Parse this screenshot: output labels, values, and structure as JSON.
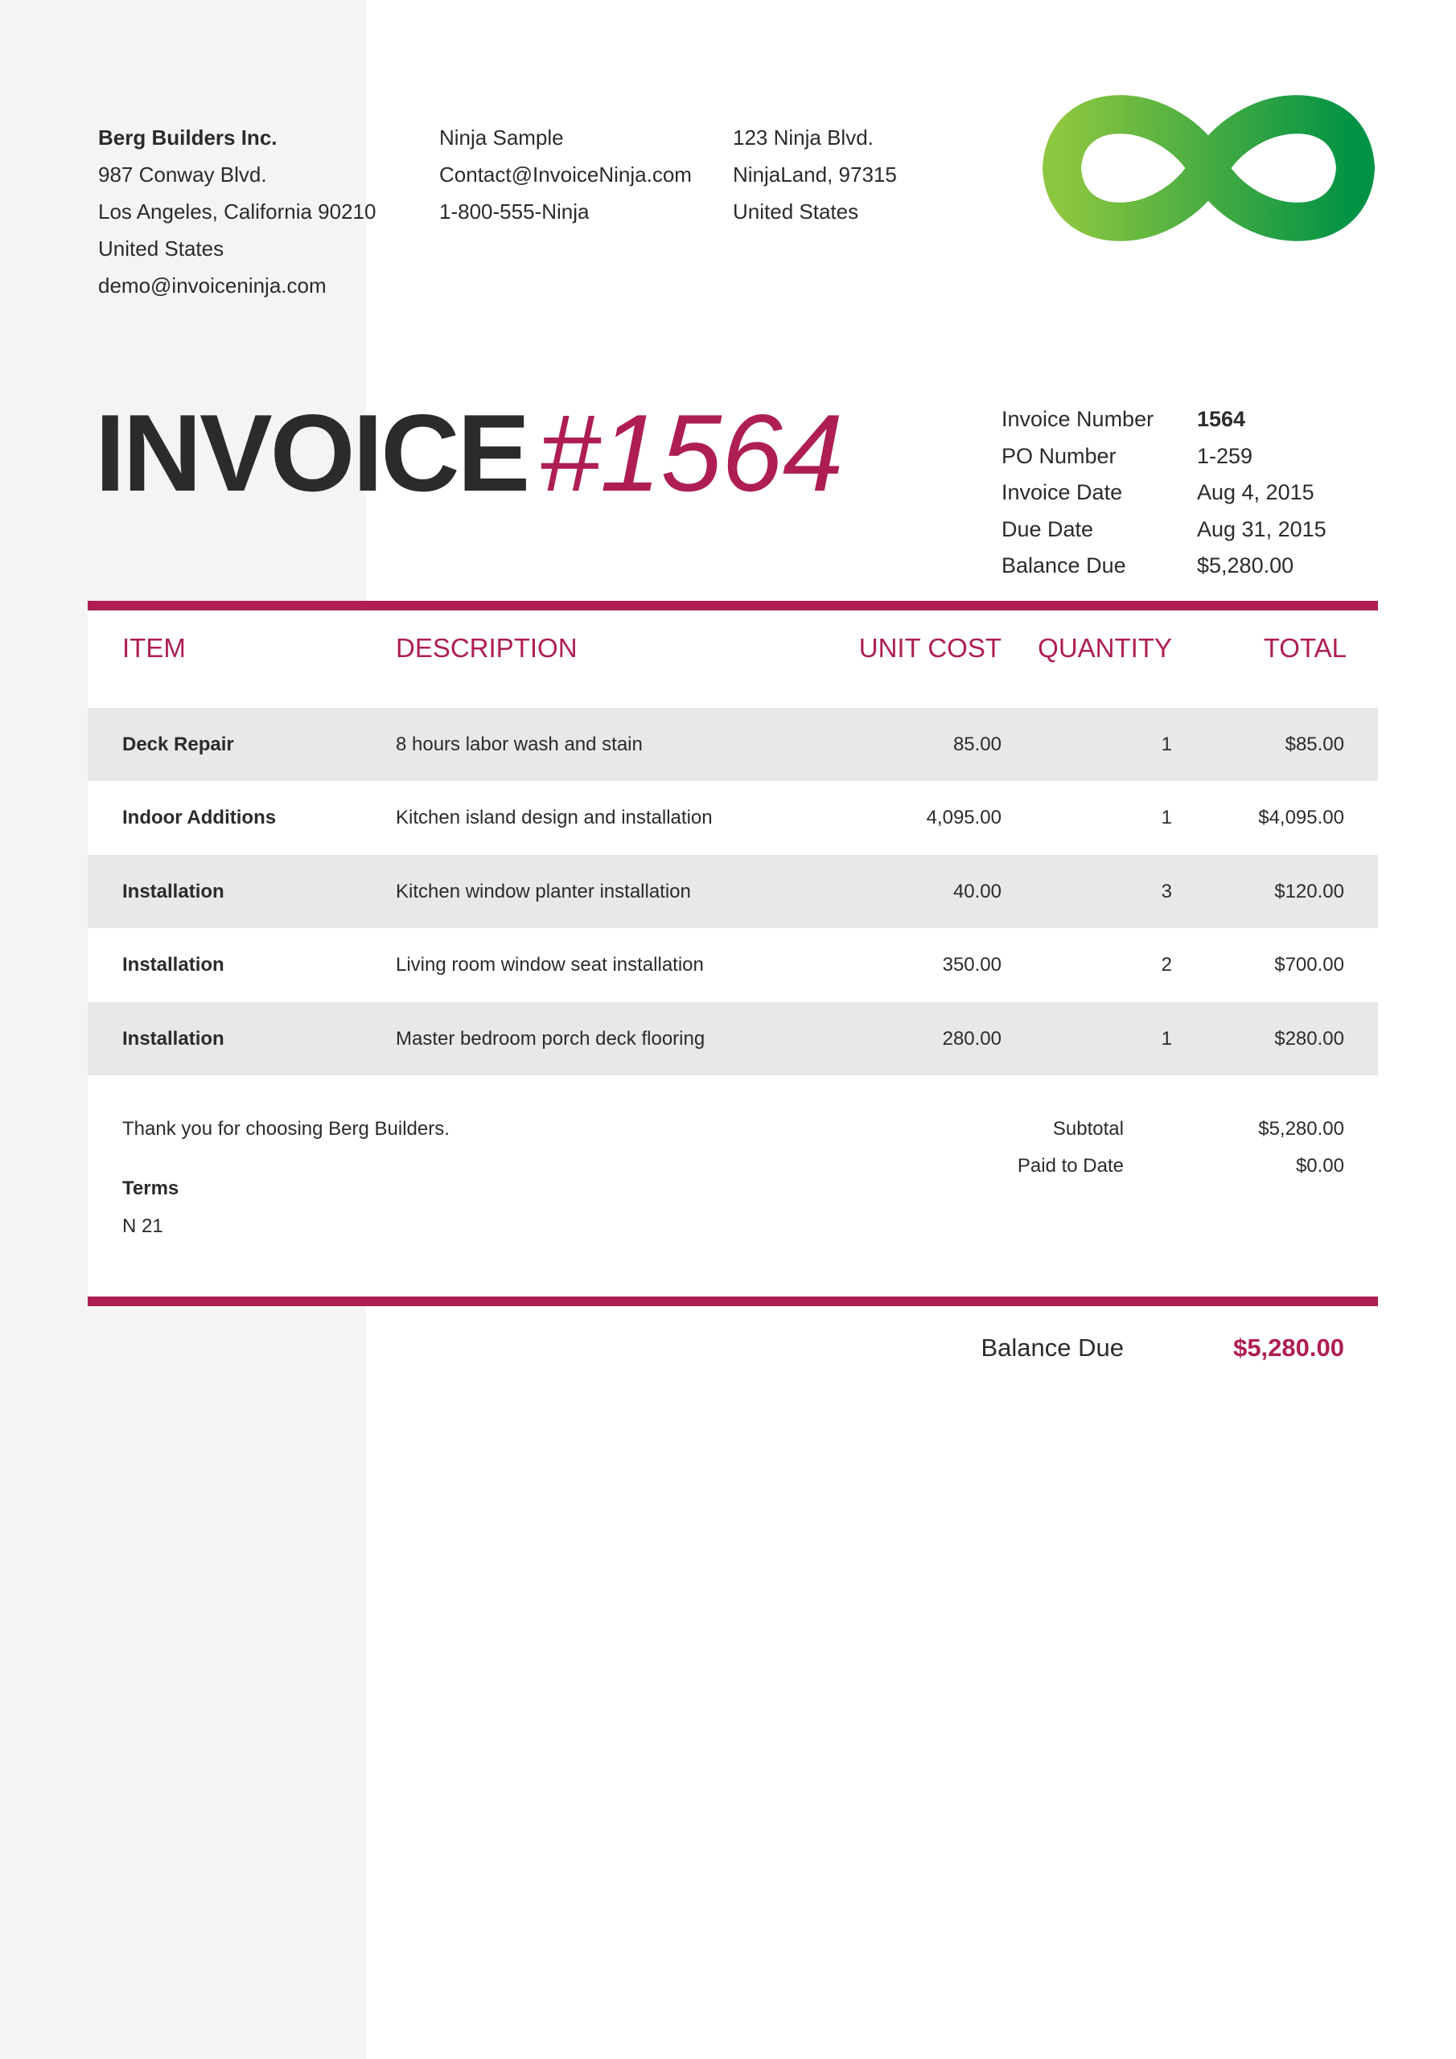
{
  "company": {
    "name": "Berg Builders Inc.",
    "lines": [
      "987 Conway Blvd.",
      "Los Angeles, California 90210",
      "United States",
      "demo@invoiceninja.com"
    ]
  },
  "client": {
    "lines": [
      "Ninja Sample",
      "Contact@InvoiceNinja.com",
      "1-800-555-Ninja"
    ]
  },
  "client_address": {
    "lines": [
      "123 Ninja Blvd.",
      "NinjaLand, 97315",
      "United States"
    ]
  },
  "logo": {
    "icon": "infinity-logo",
    "colors": [
      "#8dc63f",
      "#009245"
    ]
  },
  "title": {
    "word": "INVOICE",
    "number": "#1564"
  },
  "meta": [
    {
      "label": "Invoice Number",
      "value": "1564"
    },
    {
      "label": "PO Number",
      "value": "1-259"
    },
    {
      "label": "Invoice Date",
      "value": "Aug 4, 2015"
    },
    {
      "label": "Due Date",
      "value": "Aug 31, 2015"
    },
    {
      "label": "Balance Due",
      "value": "$5,280.00"
    }
  ],
  "table": {
    "headers": {
      "item": "ITEM",
      "description": "DESCRIPTION",
      "unit_cost": "UNIT COST",
      "quantity": "QUANTITY",
      "total": "TOTAL"
    },
    "rows": [
      {
        "item": "Deck Repair",
        "description": "8 hours labor wash and stain",
        "unit_cost": "85.00",
        "quantity": "1",
        "total": "$85.00"
      },
      {
        "item": "Indoor Additions",
        "description": "Kitchen island design and installation",
        "unit_cost": "4,095.00",
        "quantity": "1",
        "total": "$4,095.00"
      },
      {
        "item": "Installation",
        "description": "Kitchen window planter installation",
        "unit_cost": "40.00",
        "quantity": "3",
        "total": "$120.00"
      },
      {
        "item": "Installation",
        "description": "Living room window seat installation",
        "unit_cost": "350.00",
        "quantity": "2",
        "total": "$700.00"
      },
      {
        "item": "Installation",
        "description": "Master bedroom porch deck flooring",
        "unit_cost": "280.00",
        "quantity": "1",
        "total": "$280.00"
      }
    ]
  },
  "footer": {
    "note": "Thank you for choosing Berg Builders.",
    "terms_label": "Terms",
    "terms_value": "N 21",
    "subtotal_label": "Subtotal",
    "subtotal_value": "$5,280.00",
    "paid_label": "Paid to Date",
    "paid_value": "$0.00",
    "balance_label": "Balance Due",
    "balance_value": "$5,280.00"
  },
  "colors": {
    "accent": "#ae1e54",
    "row_alt": "#e8e8e8",
    "sidebar": "#f4f4f4"
  }
}
